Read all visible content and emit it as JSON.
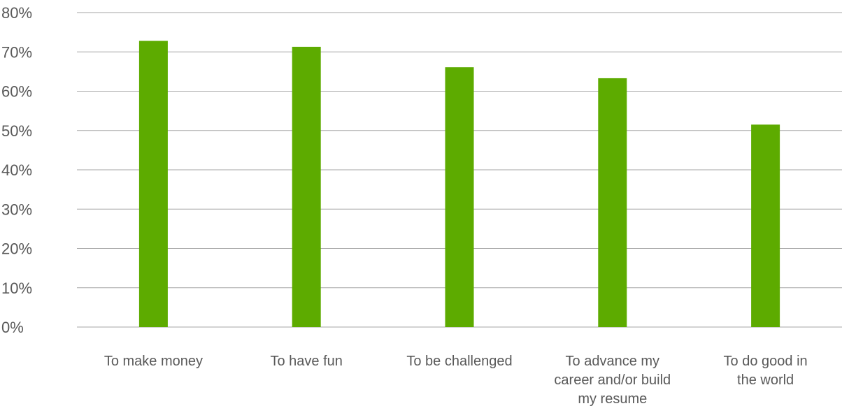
{
  "chart_data": {
    "type": "bar",
    "categories": [
      [
        "To make money"
      ],
      [
        "To have fun"
      ],
      [
        "To be challenged"
      ],
      [
        "To advance my",
        "career and/or build",
        "my resume"
      ],
      [
        "To do good in",
        "the world"
      ]
    ],
    "values": [
      72.8,
      71.3,
      66.1,
      63.3,
      51.5
    ],
    "ylim": [
      0,
      80
    ],
    "yticks": [
      0,
      10,
      20,
      30,
      40,
      50,
      60,
      70,
      80
    ],
    "ytick_labels": [
      "0%",
      "10%",
      "20%",
      "30%",
      "40%",
      "50%",
      "60%",
      "70%",
      "80%"
    ],
    "title": "",
    "xlabel": "",
    "ylabel": "",
    "grid": true,
    "legend": "none",
    "colors": {
      "bar": "#5dab00",
      "grid": "#a6a6a6",
      "text": "#595959"
    }
  }
}
